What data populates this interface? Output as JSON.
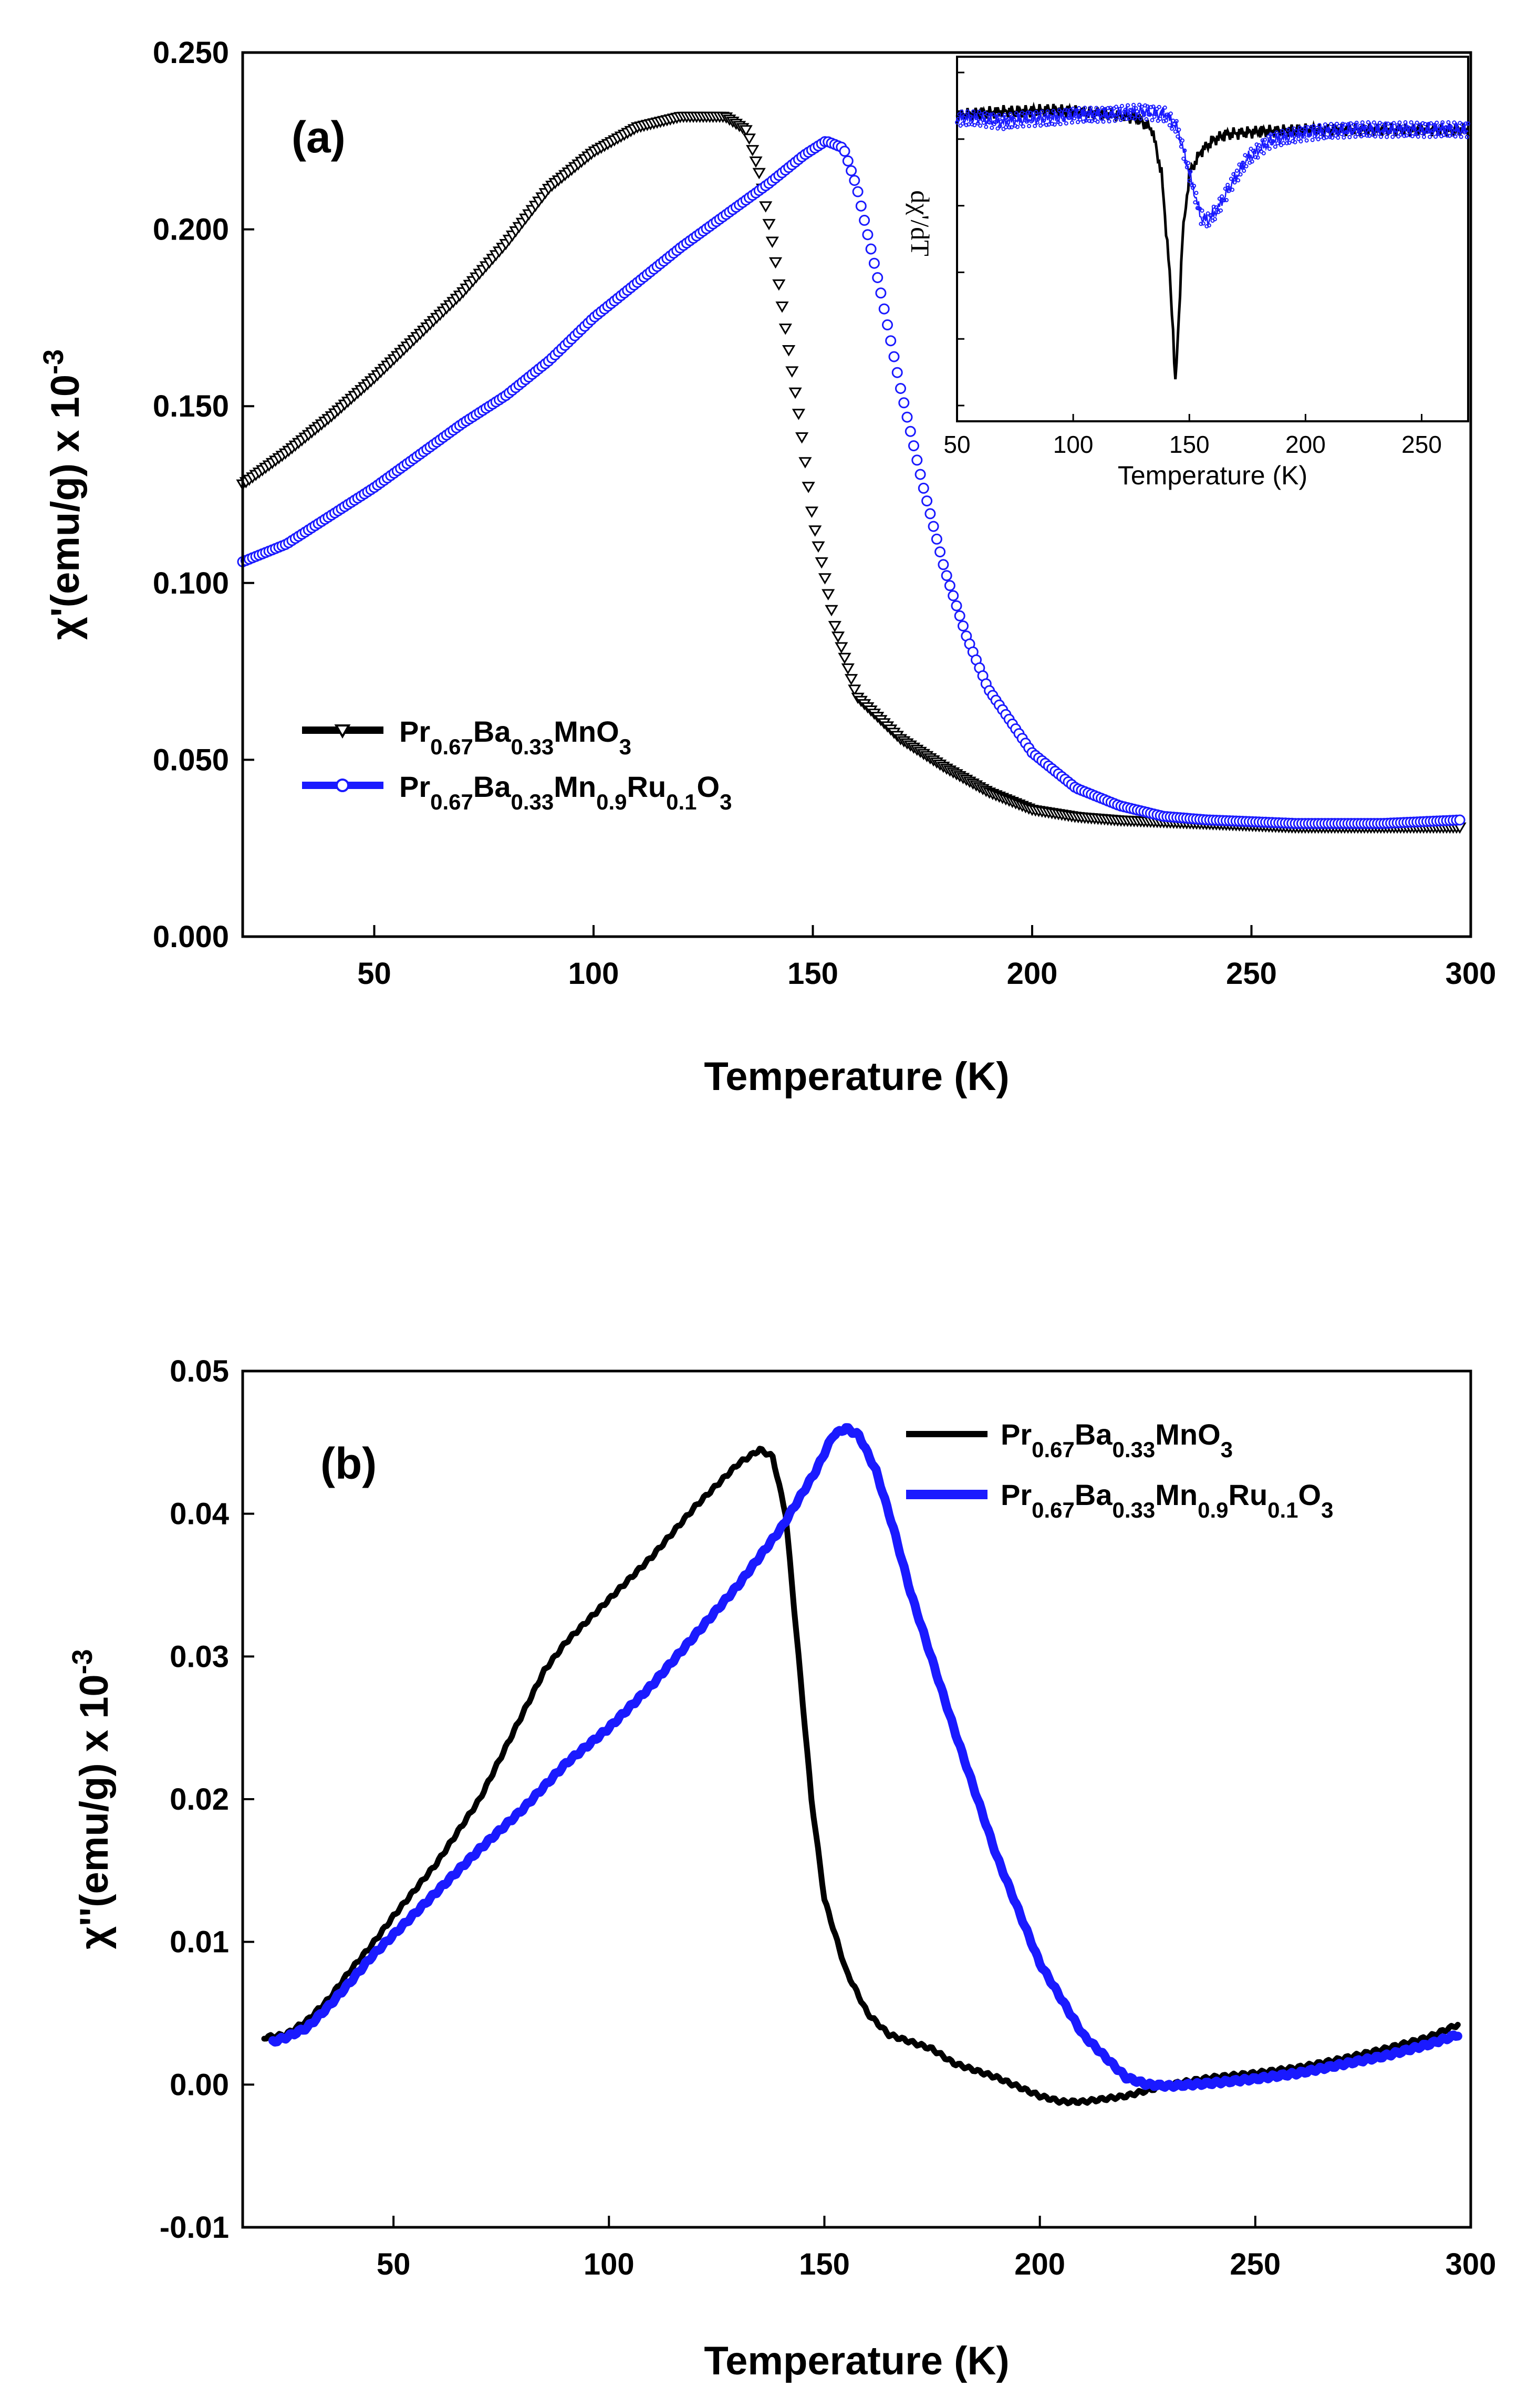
{
  "chart_data": [
    {
      "type": "scatter",
      "panel_label": "(a)",
      "xlabel": "Temperature (K)",
      "ylabel_main": "χ'(emu/g) x 10",
      "ylabel_exp": "-3",
      "xlim": [
        20,
        300
      ],
      "ylim": [
        0.0,
        0.25
      ],
      "x_ticks": [
        50,
        100,
        150,
        200,
        250,
        300
      ],
      "y_ticks": [
        0.0,
        0.05,
        0.1,
        0.15,
        0.2,
        0.25
      ],
      "y_tick_labels": [
        "0.000",
        "0.050",
        "0.100",
        "0.150",
        "0.200",
        "0.250"
      ],
      "legend_placement": "lower-left",
      "series": [
        {
          "name": "Pr0.67Ba0.33MnO3",
          "legend_parts": [
            [
              "Pr",
              ""
            ],
            [
              "0.67",
              "sub"
            ],
            [
              "Ba",
              ""
            ],
            [
              "0.33",
              "sub"
            ],
            [
              "MnO",
              ""
            ],
            [
              "3",
              "sub"
            ]
          ],
          "color": "#000000",
          "marker": "triangle-down",
          "x": [
            20,
            30,
            40,
            50,
            60,
            70,
            80,
            90,
            100,
            110,
            120,
            130,
            135,
            138,
            141,
            144,
            147,
            150,
            155,
            160,
            170,
            180,
            190,
            200,
            210,
            220,
            240,
            260,
            280,
            298
          ],
          "y": [
            0.128,
            0.137,
            0.147,
            0.158,
            0.17,
            0.182,
            0.196,
            0.212,
            0.222,
            0.229,
            0.232,
            0.232,
            0.228,
            0.215,
            0.195,
            0.17,
            0.146,
            0.118,
            0.088,
            0.068,
            0.056,
            0.048,
            0.041,
            0.036,
            0.034,
            0.033,
            0.032,
            0.031,
            0.031,
            0.031
          ]
        },
        {
          "name": "Pr0.67Ba0.33Mn0.9Ru0.1O3",
          "legend_parts": [
            [
              "Pr",
              ""
            ],
            [
              "0.67",
              "sub"
            ],
            [
              "Ba",
              ""
            ],
            [
              "0.33",
              "sub"
            ],
            [
              "Mn",
              ""
            ],
            [
              "0.9",
              "sub"
            ],
            [
              "Ru",
              ""
            ],
            [
              "0.1",
              "sub"
            ],
            [
              "O",
              ""
            ],
            [
              "3",
              "sub"
            ]
          ],
          "color": "#1a1aff",
          "marker": "circle",
          "x": [
            20,
            30,
            40,
            50,
            60,
            70,
            80,
            90,
            100,
            110,
            120,
            130,
            140,
            148,
            153,
            157,
            160,
            165,
            170,
            175,
            180,
            185,
            190,
            200,
            210,
            220,
            230,
            240,
            260,
            280,
            298
          ],
          "y": [
            0.106,
            0.111,
            0.119,
            0.127,
            0.136,
            0.145,
            0.153,
            0.163,
            0.175,
            0.185,
            0.195,
            0.204,
            0.213,
            0.221,
            0.225,
            0.223,
            0.212,
            0.185,
            0.155,
            0.128,
            0.104,
            0.085,
            0.07,
            0.052,
            0.042,
            0.037,
            0.034,
            0.033,
            0.032,
            0.032,
            0.033
          ]
        }
      ],
      "inset": {
        "xlabel": "Temperature (K)",
        "ylabel": "dχ'/dT",
        "xlim": [
          50,
          270
        ],
        "ylim": [
          0,
          1
        ],
        "x_ticks": [
          50,
          100,
          150,
          200,
          250
        ],
        "series": [
          {
            "name": "Pr0.67Ba0.33MnO3",
            "color": "#000000",
            "x": [
              50,
              60,
              70,
              80,
              90,
              100,
              110,
              120,
              128,
              134,
              138,
              141,
              143,
              144,
              145,
              147,
              150,
              155,
              160,
              165,
              170,
              180,
              200,
              220,
              240,
              270
            ],
            "y": [
              0.84,
              0.845,
              0.85,
              0.85,
              0.855,
              0.85,
              0.845,
              0.84,
              0.83,
              0.8,
              0.68,
              0.45,
              0.25,
              0.1,
              0.22,
              0.5,
              0.68,
              0.74,
              0.77,
              0.785,
              0.79,
              0.795,
              0.8,
              0.8,
              0.8,
              0.8
            ]
          },
          {
            "name": "Pr0.67Ba0.33Mn0.9Ru0.1O3",
            "color": "#1a1aff",
            "x": [
              50,
              60,
              70,
              80,
              90,
              100,
              110,
              120,
              130,
              140,
              145,
              150,
              155,
              158,
              162,
              168,
              175,
              185,
              200,
              220,
              240,
              270
            ],
            "y": [
              0.83,
              0.83,
              0.82,
              0.83,
              0.83,
              0.84,
              0.84,
              0.845,
              0.85,
              0.84,
              0.8,
              0.68,
              0.56,
              0.55,
              0.58,
              0.65,
              0.72,
              0.77,
              0.79,
              0.8,
              0.8,
              0.8
            ]
          }
        ]
      }
    },
    {
      "type": "line",
      "panel_label": "(b)",
      "xlabel": "Temperature (K)",
      "ylabel_main": "χ''(emu/g) x 10",
      "ylabel_exp": "-3",
      "xlim": [
        15,
        300
      ],
      "ylim": [
        -0.01,
        0.05
      ],
      "x_ticks": [
        50,
        100,
        150,
        200,
        250,
        300
      ],
      "y_ticks": [
        -0.01,
        0.0,
        0.01,
        0.02,
        0.03,
        0.04,
        0.05
      ],
      "y_tick_labels": [
        "-0.01",
        "0.00",
        "0.01",
        "0.02",
        "0.03",
        "0.04",
        "0.05"
      ],
      "legend_placement": "top-right",
      "series": [
        {
          "name": "Pr0.67Ba0.33MnO3",
          "legend_parts": [
            [
              "Pr",
              ""
            ],
            [
              "0.67",
              "sub"
            ],
            [
              "Ba",
              ""
            ],
            [
              "0.33",
              "sub"
            ],
            [
              "MnO",
              ""
            ],
            [
              "3",
              "sub"
            ]
          ],
          "color": "#000000",
          "x": [
            20,
            25,
            30,
            35,
            40,
            45,
            50,
            60,
            70,
            80,
            85,
            90,
            100,
            110,
            120,
            130,
            135,
            138,
            141,
            144,
            147,
            150,
            155,
            160,
            165,
            170,
            175,
            180,
            190,
            200,
            205,
            210,
            220,
            230,
            240,
            250,
            260,
            270,
            280,
            290,
            297
          ],
          "y": [
            0.0033,
            0.0035,
            0.0045,
            0.006,
            0.008,
            0.0098,
            0.0118,
            0.0155,
            0.02,
            0.026,
            0.029,
            0.031,
            0.034,
            0.037,
            0.0405,
            0.0435,
            0.0445,
            0.044,
            0.04,
            0.03,
            0.02,
            0.013,
            0.008,
            0.005,
            0.0035,
            0.003,
            0.0025,
            0.0015,
            0.0005,
            -0.0008,
            -0.0012,
            -0.0012,
            -0.0008,
            0.0,
            0.0005,
            0.0008,
            0.0012,
            0.0018,
            0.0025,
            0.0033,
            0.0042
          ]
        },
        {
          "name": "Pr0.67Ba0.33Mn0.9Ru0.1O3",
          "legend_parts": [
            [
              "Pr",
              ""
            ],
            [
              "0.67",
              "sub"
            ],
            [
              "Ba",
              ""
            ],
            [
              "0.33",
              "sub"
            ],
            [
              "Mn",
              ""
            ],
            [
              "0.9",
              "sub"
            ],
            [
              "Ru",
              ""
            ],
            [
              "0.1",
              "sub"
            ],
            [
              "O",
              ""
            ],
            [
              "3",
              "sub"
            ]
          ],
          "color": "#1a1aff",
          "x": [
            22,
            25,
            30,
            35,
            40,
            45,
            50,
            60,
            70,
            80,
            90,
            100,
            110,
            120,
            130,
            140,
            148,
            152,
            155,
            158,
            162,
            166,
            170,
            180,
            190,
            200,
            210,
            220,
            225,
            230,
            240,
            250,
            260,
            270,
            280,
            290,
            297
          ],
          "y": [
            0.003,
            0.0033,
            0.004,
            0.0055,
            0.0072,
            0.009,
            0.0105,
            0.0135,
            0.0165,
            0.0193,
            0.0225,
            0.025,
            0.028,
            0.0315,
            0.035,
            0.039,
            0.043,
            0.0455,
            0.046,
            0.0455,
            0.043,
            0.039,
            0.0345,
            0.025,
            0.016,
            0.0085,
            0.0035,
            0.0005,
            0.0,
            -0.0001,
            0.0001,
            0.0004,
            0.0008,
            0.0014,
            0.002,
            0.0028,
            0.0035
          ]
        }
      ]
    }
  ]
}
